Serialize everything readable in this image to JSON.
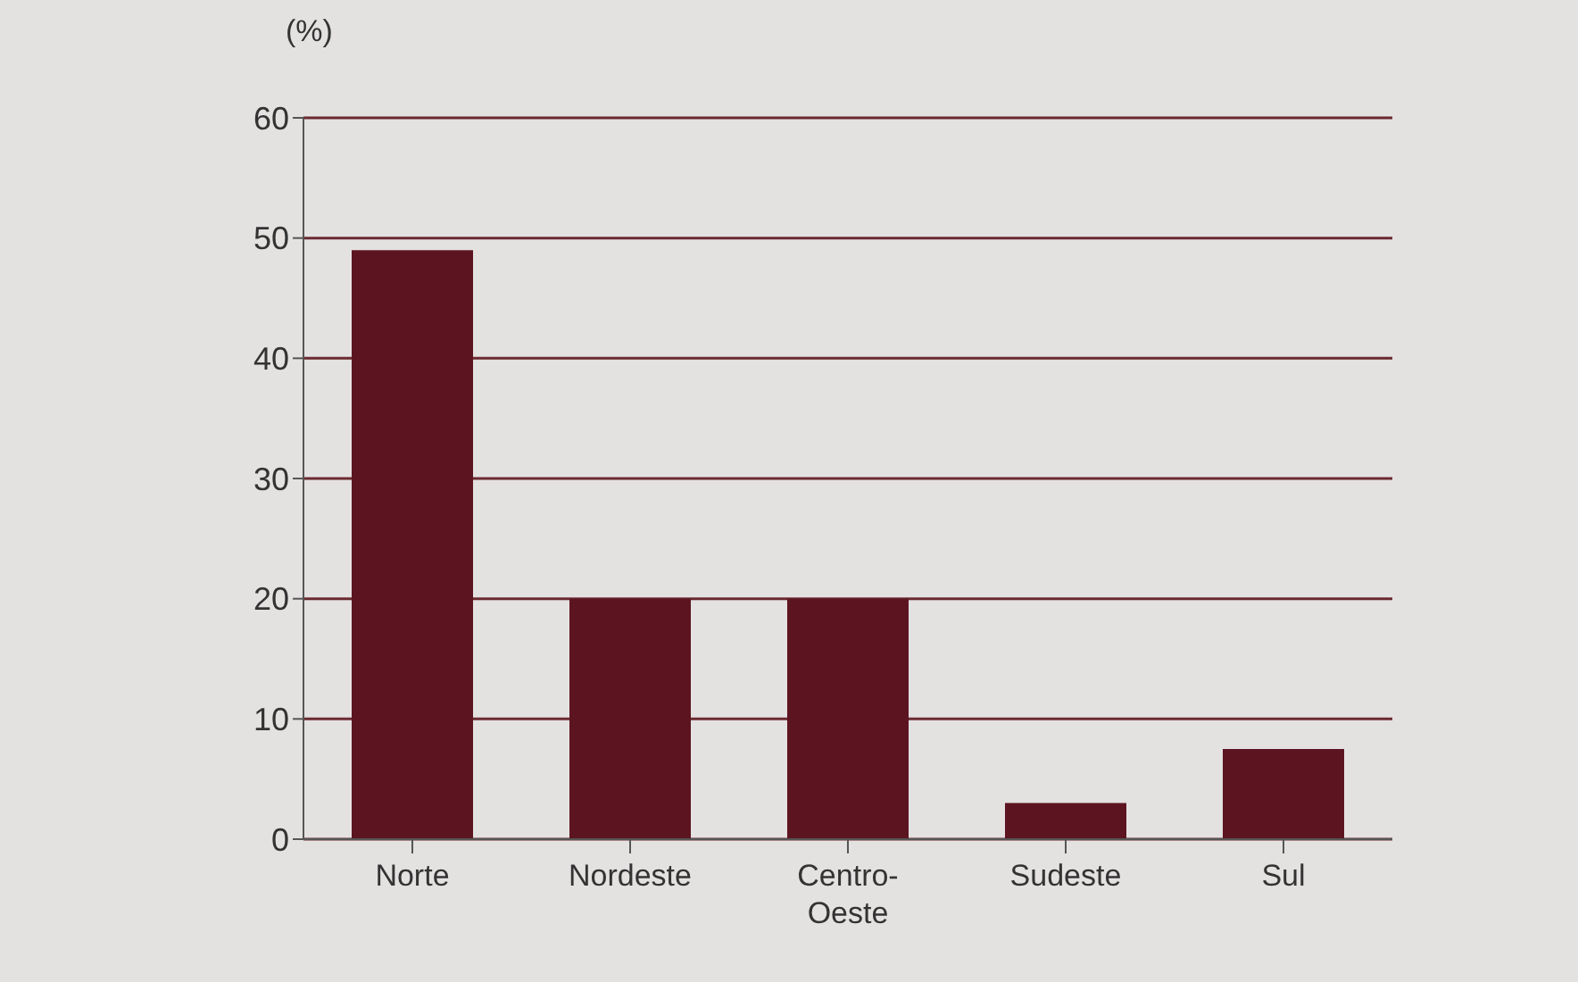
{
  "chart_data": {
    "type": "bar",
    "ylabel": "(%)",
    "categories": [
      "Norte",
      "Nordeste",
      "Centro-Oeste",
      "Sudeste",
      "Sul"
    ],
    "values": [
      49,
      20,
      20,
      3,
      7.5
    ],
    "color": "#5c1520",
    "ylim": [
      0,
      60
    ],
    "yticks": [
      0,
      10,
      20,
      30,
      40,
      50,
      60
    ],
    "grid": "y"
  }
}
